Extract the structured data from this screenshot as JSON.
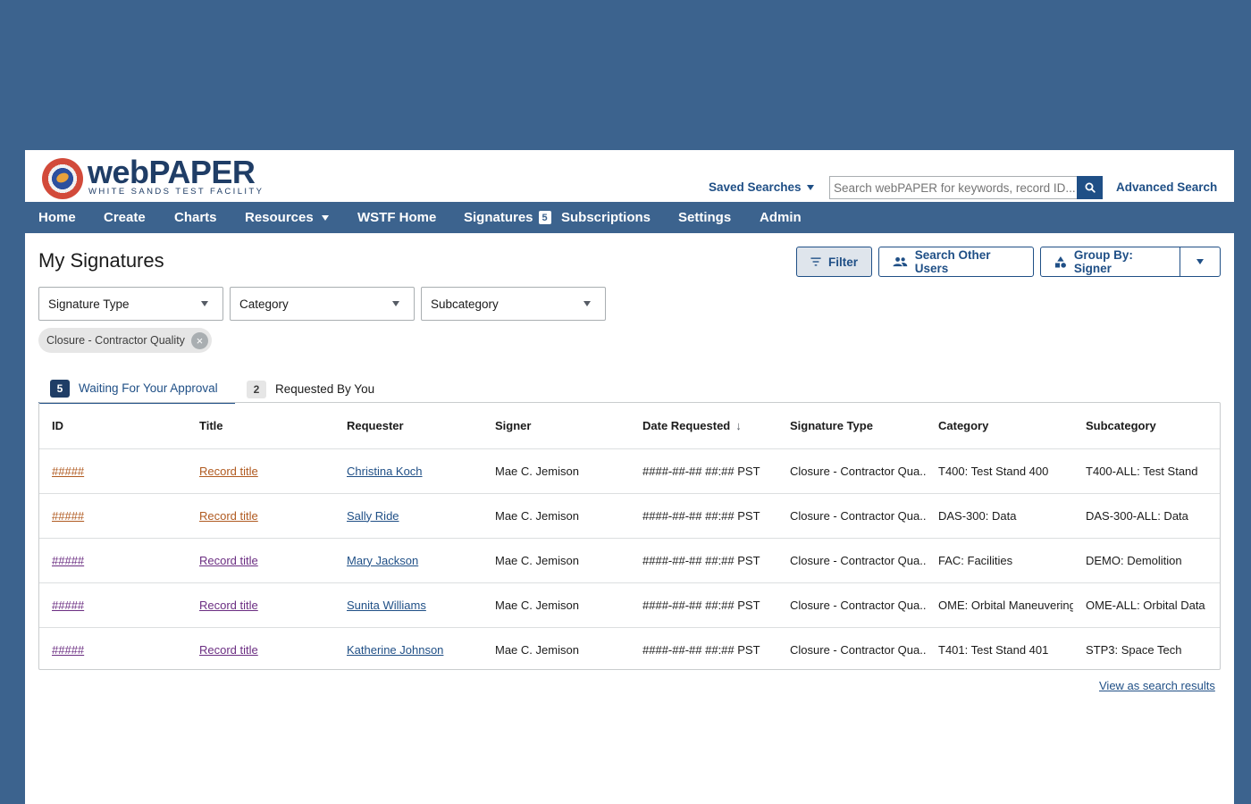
{
  "header": {
    "logo_name": "webPAPER",
    "logo_subtitle": "WHITE SANDS TEST FACILITY",
    "saved_searches_label": "Saved Searches",
    "search_placeholder": "Search webPAPER for keywords, record ID...",
    "advanced_search_label": "Advanced Search"
  },
  "nav": {
    "items": [
      {
        "label": "Home"
      },
      {
        "label": "Create"
      },
      {
        "label": "Charts"
      },
      {
        "label": "Resources"
      },
      {
        "label": "WSTF Home"
      },
      {
        "label": "Signatures",
        "badge": "5"
      },
      {
        "label": "Subscriptions"
      },
      {
        "label": "Settings"
      },
      {
        "label": "Admin"
      }
    ]
  },
  "page": {
    "title": "My Signatures",
    "filter_label": "Filter",
    "search_other_users_label": "Search Other Users",
    "group_by_label": "Group By: Signer"
  },
  "filters": {
    "signature_type": "Signature Type",
    "category": "Category",
    "subcategory": "Subcategory",
    "active_chip": "Closure - Contractor Quality"
  },
  "tabs": [
    {
      "count": "5",
      "label": "Waiting For Your Approval"
    },
    {
      "count": "2",
      "label": "Requested By You"
    }
  ],
  "table": {
    "columns": [
      "ID",
      "Title",
      "Requester",
      "Signer",
      "Date Requested",
      "Signature Type",
      "Category",
      "Subcategory"
    ],
    "rows": [
      {
        "id": "#####",
        "title": "Record title",
        "requester": "Christina Koch",
        "signer": "Mae C. Jemison",
        "date": "####-##-## ##:## PST",
        "sig_type": "Closure - Contractor Qua...",
        "category": "T400: Test Stand 400",
        "subcategory": "T400-ALL: Test Stand"
      },
      {
        "id": "#####",
        "title": "Record title",
        "requester": "Sally Ride",
        "signer": "Mae C. Jemison",
        "date": "####-##-## ##:## PST",
        "sig_type": "Closure - Contractor Qua...",
        "category": "DAS-300: Data",
        "subcategory": "DAS-300-ALL: Data"
      },
      {
        "id": "#####",
        "title": "Record title",
        "requester": "Mary Jackson",
        "signer": "Mae C. Jemison",
        "date": "####-##-## ##:## PST",
        "sig_type": "Closure - Contractor Qua...",
        "category": "FAC: Facilities",
        "subcategory": "DEMO: Demolition"
      },
      {
        "id": "#####",
        "title": "Record title",
        "requester": "Sunita Williams",
        "signer": "Mae C. Jemison",
        "date": "####-##-## ##:## PST",
        "sig_type": "Closure - Contractor Qua...",
        "category": "OME: Orbital Maneuvering",
        "subcategory": "OME-ALL: Orbital Data"
      },
      {
        "id": "#####",
        "title": "Record title",
        "requester": "Katherine Johnson",
        "signer": "Mae C. Jemison",
        "date": "####-##-## ##:## PST",
        "sig_type": "Closure - Contractor Qua...",
        "category": "T401: Test Stand 401",
        "subcategory": "STP3: Space Tech"
      }
    ]
  },
  "footer": {
    "view_results_label": "View as search results"
  },
  "colors": {
    "brand_blue": "#3c638e",
    "link_blue": "#1f4f86",
    "visited_orange": "#b05a20",
    "visited_purple": "#6b2e82"
  }
}
